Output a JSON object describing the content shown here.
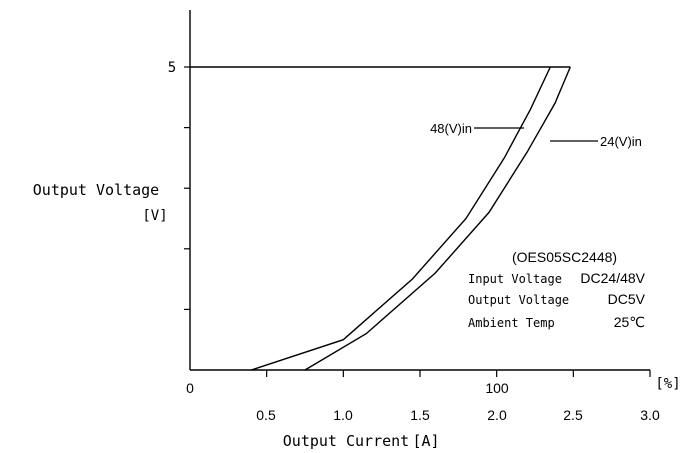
{
  "chart_data": {
    "type": "line",
    "title": "",
    "xlabel": "Output Current",
    "xlabel_unit": "[A]",
    "ylabel": "Output Voltage",
    "ylabel_unit": "[V]",
    "xlim": [
      0,
      3.0
    ],
    "ylim": [
      0,
      6
    ],
    "x_ticks_current": [
      "0.5",
      "1.0",
      "1.5",
      "2.0",
      "2.5",
      "3.0"
    ],
    "x_ticks_percent": [
      "0",
      "100"
    ],
    "percent_unit": "[%]",
    "y_tick_labels": [
      "5"
    ],
    "grid": false,
    "series": [
      {
        "name": "48(V)in",
        "points": [
          [
            0.4,
            0.0
          ],
          [
            1.0,
            0.5
          ],
          [
            1.45,
            1.5
          ],
          [
            1.8,
            2.5
          ],
          [
            2.05,
            3.5
          ],
          [
            2.22,
            4.3
          ],
          [
            2.35,
            5.0
          ]
        ]
      },
      {
        "name": "24(V)in",
        "points": [
          [
            0.75,
            0.0
          ],
          [
            1.15,
            0.6
          ],
          [
            1.6,
            1.6
          ],
          [
            1.95,
            2.6
          ],
          [
            2.2,
            3.6
          ],
          [
            2.38,
            4.4
          ],
          [
            2.48,
            5.0
          ]
        ]
      }
    ],
    "overload_line": {
      "y": 5,
      "x_start": 0,
      "x_end": 2.48
    },
    "annotation": {
      "model": "(OES05SC2448)",
      "rows": [
        {
          "label": "Input Voltage",
          "value": "DC24/48V"
        },
        {
          "label": "Output Voltage",
          "value": "DC5V"
        },
        {
          "label": "Ambient Temp",
          "value": "25℃"
        }
      ]
    }
  }
}
